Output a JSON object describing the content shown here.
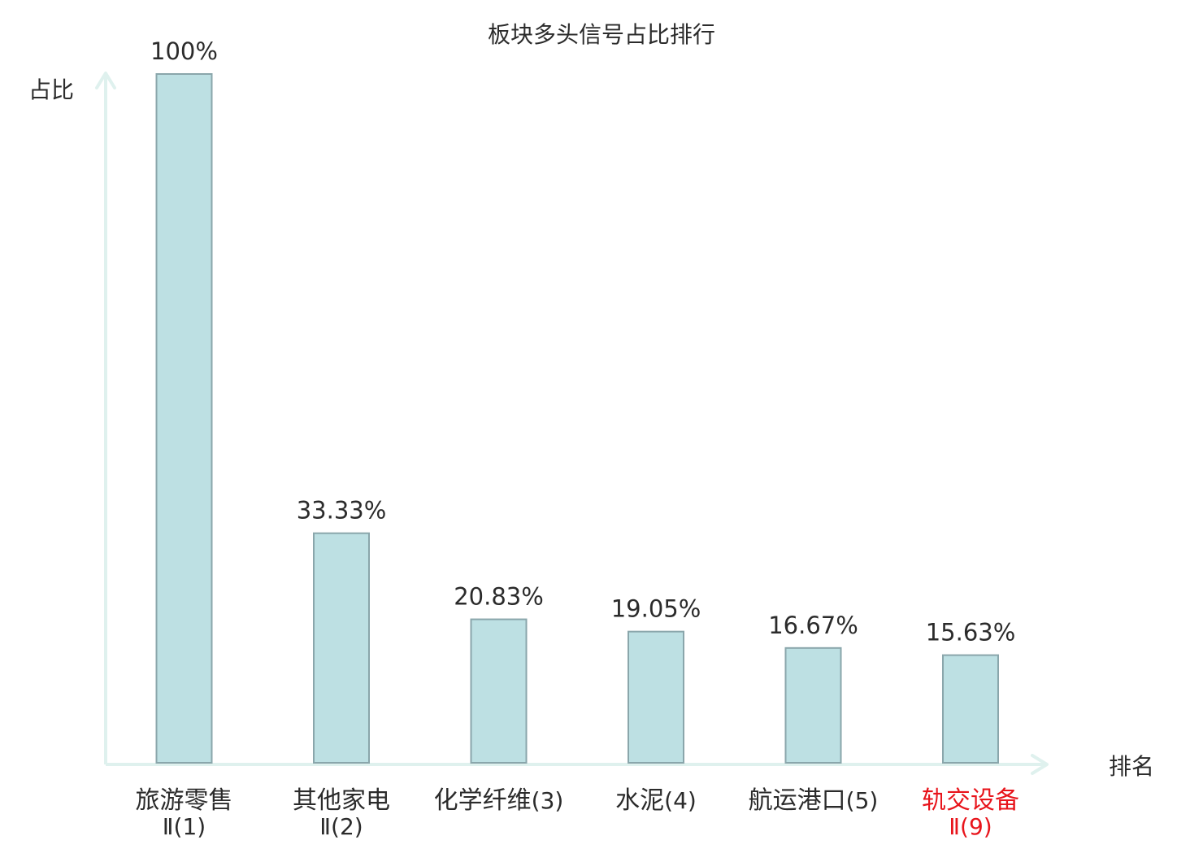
{
  "chart_data": {
    "type": "bar",
    "title": "板块多头信号占比排行",
    "ylabel": "占比",
    "xlabel": "排名",
    "ylim": [
      0,
      100
    ],
    "grid": false,
    "categories": [
      {
        "name": "旅游零售",
        "rank_label": "Ⅱ(1)"
      },
      {
        "name": "其他家电",
        "rank_label": "Ⅱ(2)"
      },
      {
        "name": "化学纤维",
        "rank_label": "(3)"
      },
      {
        "name": "水泥",
        "rank_label": "(4)"
      },
      {
        "name": "航运港口",
        "rank_label": "(5)"
      },
      {
        "name": "轨交设备",
        "rank_label": "Ⅱ(9)",
        "highlight": true
      }
    ],
    "values": [
      100,
      33.33,
      20.83,
      19.05,
      16.67,
      15.63
    ],
    "value_labels": [
      "100%",
      "33.33%",
      "20.83%",
      "19.05%",
      "16.67%",
      "15.63%"
    ]
  },
  "colors": {
    "bar_fill": "#bde0e3",
    "bar_stroke": "#8aa6ab",
    "axis": "#dff1ee",
    "text": "#2b2b2b",
    "highlight_text": "#e8141b"
  }
}
